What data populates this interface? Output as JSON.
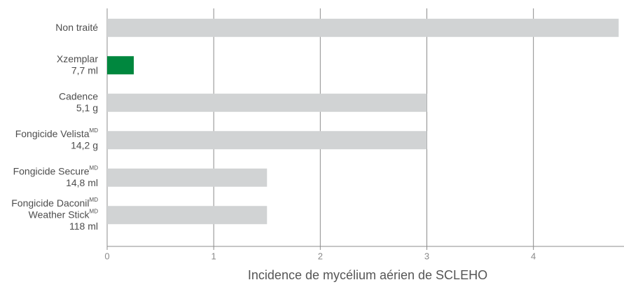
{
  "chart_data": {
    "type": "barh",
    "categories": [
      [
        [
          "Non traité"
        ]
      ],
      [
        [
          "Xzemplar"
        ],
        [
          "7,7 ml"
        ]
      ],
      [
        [
          "Cadence"
        ],
        [
          "5,1 g"
        ]
      ],
      [
        [
          "Fongicide Velista",
          "MD"
        ],
        [
          "14,2 g"
        ]
      ],
      [
        [
          "Fongicide Secure",
          "MD"
        ],
        [
          "14,8 ml"
        ]
      ],
      [
        [
          "Fongicide Daconil",
          "MD"
        ],
        [
          "Weather Stick",
          "MD"
        ],
        [
          "118 ml"
        ]
      ]
    ],
    "values": [
      4.8,
      0.25,
      3,
      3,
      1.5,
      1.5
    ],
    "colors": [
      "#d1d3d4",
      "#00873e",
      "#d1d3d4",
      "#d1d3d4",
      "#d1d3d4",
      "#d1d3d4"
    ],
    "xlim": [
      0,
      4.85
    ],
    "xticks": [
      0,
      1,
      2,
      3,
      4
    ],
    "grid": true,
    "xlabel": "Incidence de mycélium aérien de SCLEHO"
  }
}
